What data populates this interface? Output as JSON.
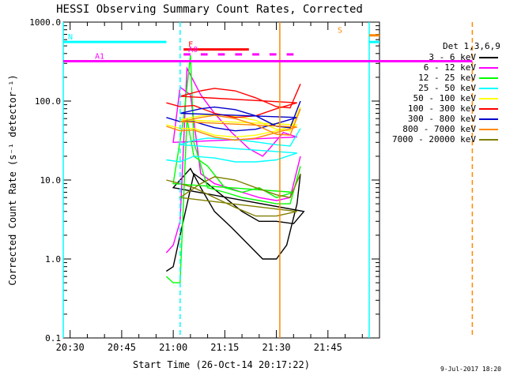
{
  "chart_data": {
    "type": "line",
    "title": "HESSI Observing Summary Count Rates, Corrected",
    "xlabel": "Start Time (26-Oct-14 20:17:22)",
    "ylabel": "Corrected Count Rate (s⁻¹ detector⁻¹)",
    "y_scale": "log",
    "ylim": [
      0.1,
      1000
    ],
    "y_ticks": [
      "0.1",
      "1.0",
      "10.0",
      "100.0",
      "1000.0"
    ],
    "x_range_minutes": [
      20.28,
      22.0
    ],
    "x_ticks": [
      "20:30",
      "20:45",
      "21:00",
      "21:15",
      "21:30",
      "21:45"
    ],
    "legend_title": "Det 1,3,6,9",
    "series": [
      {
        "name": "3 - 6 keV",
        "color": "#000000",
        "points": [
          [
            20.58,
            0.7
          ],
          [
            20.6,
            0.8
          ],
          [
            20.62,
            2.0
          ],
          [
            20.66,
            12.0
          ],
          [
            20.7,
            9.0
          ],
          [
            20.75,
            6.0
          ],
          [
            20.8,
            4.0
          ],
          [
            20.85,
            3.0
          ],
          [
            20.9,
            3.0
          ],
          [
            20.95,
            2.8
          ],
          [
            20.98,
            4.0
          ],
          [
            21.0,
            8.0
          ],
          [
            21.05,
            14.0
          ],
          [
            21.08,
            8.0
          ],
          [
            21.12,
            4.0
          ],
          [
            21.17,
            2.5
          ],
          [
            21.22,
            1.5
          ],
          [
            21.26,
            1.0
          ],
          [
            21.3,
            1.0
          ],
          [
            21.33,
            1.5
          ],
          [
            21.36,
            5.0
          ],
          [
            21.37,
            12.0
          ]
        ]
      },
      {
        "name": "6 - 12 keV",
        "color": "#ff00ff",
        "points": [
          [
            20.58,
            1.2
          ],
          [
            20.6,
            1.5
          ],
          [
            20.62,
            3.0
          ],
          [
            20.64,
            260.0
          ],
          [
            20.68,
            120.0
          ],
          [
            20.72,
            70.0
          ],
          [
            20.77,
            40.0
          ],
          [
            20.82,
            25.0
          ],
          [
            20.86,
            20.0
          ],
          [
            20.88,
            25.0
          ],
          [
            20.92,
            40.0
          ],
          [
            20.96,
            35.0
          ],
          [
            21.0,
            30.0
          ],
          [
            21.02,
            150.0
          ],
          [
            21.05,
            120.0
          ],
          [
            21.08,
            12.0
          ],
          [
            21.12,
            9.0
          ],
          [
            21.16,
            8.0
          ],
          [
            21.2,
            7.0
          ],
          [
            21.25,
            6.0
          ],
          [
            21.3,
            5.5
          ],
          [
            21.34,
            6.0
          ],
          [
            21.37,
            20.0
          ]
        ]
      },
      {
        "name": "12 - 25 keV",
        "color": "#00ff00",
        "points": [
          [
            20.58,
            0.6
          ],
          [
            20.6,
            0.5
          ],
          [
            20.62,
            0.5
          ],
          [
            20.64,
            60.0
          ],
          [
            20.66,
            20.0
          ],
          [
            20.7,
            15.0
          ],
          [
            20.75,
            8.0
          ],
          [
            20.8,
            7.0
          ],
          [
            20.85,
            8.0
          ],
          [
            20.9,
            6.0
          ],
          [
            20.95,
            7.0
          ],
          [
            21.0,
            9.0
          ],
          [
            21.03,
            60.0
          ],
          [
            21.05,
            380.0
          ],
          [
            21.06,
            30.0
          ],
          [
            21.1,
            8.0
          ],
          [
            21.15,
            7.0
          ],
          [
            21.2,
            6.0
          ],
          [
            21.25,
            5.5
          ],
          [
            21.3,
            5.0
          ],
          [
            21.34,
            5.0
          ],
          [
            21.37,
            15.0
          ]
        ]
      },
      {
        "name": "25 - 50 keV",
        "color": "#00ffff",
        "points": [
          [
            20.58,
            18.0
          ],
          [
            20.62,
            17.0
          ],
          [
            20.66,
            20.0
          ],
          [
            20.72,
            19.0
          ],
          [
            20.78,
            17.0
          ],
          [
            20.84,
            17.0
          ],
          [
            20.9,
            18.0
          ],
          [
            20.96,
            22.0
          ],
          [
            21.02,
            28.0
          ],
          [
            21.06,
            32.0
          ],
          [
            21.1,
            34.0
          ],
          [
            21.15,
            33.0
          ],
          [
            21.2,
            32.0
          ],
          [
            21.25,
            30.0
          ],
          [
            21.3,
            28.0
          ],
          [
            21.34,
            27.0
          ],
          [
            21.37,
            45.0
          ]
        ]
      },
      {
        "name": "50 - 100 keV",
        "color": "#ffff00",
        "points": [
          [
            20.58,
            50.0
          ],
          [
            20.62,
            45.0
          ],
          [
            20.66,
            45.0
          ],
          [
            20.72,
            37.0
          ],
          [
            20.78,
            35.0
          ],
          [
            20.84,
            37.0
          ],
          [
            20.9,
            42.0
          ],
          [
            20.96,
            50.0
          ],
          [
            21.02,
            58.0
          ],
          [
            21.08,
            65.0
          ],
          [
            21.12,
            68.0
          ],
          [
            21.18,
            64.0
          ],
          [
            21.24,
            57.0
          ],
          [
            21.3,
            44.0
          ],
          [
            21.34,
            42.0
          ],
          [
            21.37,
            85.0
          ]
        ]
      },
      {
        "name": "100 - 300 keV",
        "color": "#ff0000",
        "points": [
          [
            20.58,
            95.0
          ],
          [
            20.62,
            85.0
          ],
          [
            20.66,
            88.0
          ],
          [
            20.72,
            70.0
          ],
          [
            20.78,
            62.0
          ],
          [
            20.84,
            65.0
          ],
          [
            20.9,
            80.0
          ],
          [
            20.96,
            95.0
          ],
          [
            21.02,
            115.0
          ],
          [
            21.08,
            135.0
          ],
          [
            21.12,
            145.0
          ],
          [
            21.18,
            135.0
          ],
          [
            21.24,
            110.0
          ],
          [
            21.3,
            85.0
          ],
          [
            21.34,
            82.0
          ],
          [
            21.37,
            165.0
          ]
        ]
      },
      {
        "name": "300 - 800 keV",
        "color": "#0000cc",
        "points": [
          [
            20.58,
            62.0
          ],
          [
            20.62,
            55.0
          ],
          [
            20.66,
            55.0
          ],
          [
            20.72,
            46.0
          ],
          [
            20.78,
            42.0
          ],
          [
            20.84,
            44.0
          ],
          [
            20.9,
            52.0
          ],
          [
            20.96,
            62.0
          ],
          [
            21.02,
            70.0
          ],
          [
            21.08,
            80.0
          ],
          [
            21.12,
            84.0
          ],
          [
            21.18,
            78.0
          ],
          [
            21.24,
            65.0
          ],
          [
            21.3,
            48.0
          ],
          [
            21.34,
            46.0
          ],
          [
            21.37,
            100.0
          ]
        ]
      },
      {
        "name": "800 - 7000 keV",
        "color": "#ff8800",
        "points": [
          [
            20.58,
            48.0
          ],
          [
            20.62,
            42.0
          ],
          [
            20.66,
            43.0
          ],
          [
            20.72,
            35.0
          ],
          [
            20.78,
            32.0
          ],
          [
            20.84,
            34.0
          ],
          [
            20.9,
            40.0
          ],
          [
            20.96,
            47.0
          ],
          [
            21.02,
            55.0
          ],
          [
            21.08,
            62.0
          ],
          [
            21.12,
            66.0
          ],
          [
            21.18,
            60.0
          ],
          [
            21.24,
            50.0
          ],
          [
            21.3,
            38.0
          ],
          [
            21.34,
            37.0
          ],
          [
            21.37,
            80.0
          ]
        ]
      },
      {
        "name": "7000 - 20000 keV",
        "color": "#7f7f00",
        "points": [
          [
            20.58,
            10.0
          ],
          [
            20.62,
            9.0
          ],
          [
            20.66,
            8.0
          ],
          [
            20.72,
            6.0
          ],
          [
            20.78,
            4.5
          ],
          [
            20.84,
            3.5
          ],
          [
            20.9,
            3.5
          ],
          [
            20.96,
            4.0
          ],
          [
            21.02,
            6.0
          ],
          [
            21.08,
            9.0
          ],
          [
            21.12,
            11.0
          ],
          [
            21.18,
            10.0
          ],
          [
            21.24,
            8.0
          ],
          [
            21.3,
            6.5
          ],
          [
            21.34,
            6.0
          ],
          [
            21.37,
            12.0
          ]
        ]
      }
    ],
    "flags": [
      {
        "label": "N",
        "color": "#00ffff",
        "y_value": 560,
        "segments": [
          [
            20.28,
            20.58
          ],
          [
            21.57,
            22.0
          ]
        ]
      },
      {
        "label": "S",
        "color": "#ff8800",
        "y_value": 680,
        "segments": [
          [
            21.57,
            22.0
          ]
        ]
      },
      {
        "label": "F",
        "color": "#ff0000",
        "y_value": 450,
        "segments": [
          [
            20.63,
            21.22
          ]
        ]
      },
      {
        "label": "A0",
        "color": "#ff00ff",
        "y_value": 390,
        "segments": [
          [
            20.63,
            20.65
          ],
          [
            20.68,
            20.7
          ],
          [
            20.73,
            20.75
          ],
          [
            20.78,
            20.8
          ],
          [
            20.83,
            20.85
          ],
          [
            20.88,
            20.9
          ],
          [
            20.93,
            20.95
          ]
        ]
      },
      {
        "label": "A1",
        "color": "#ff00ff",
        "y_value": 320,
        "segments": [
          [
            20.28,
            21.87
          ]
        ]
      }
    ],
    "vertical_lines": [
      {
        "x": 20.28,
        "color": "#00ffff",
        "style": "solid"
      },
      {
        "x": 20.62,
        "color": "#00ffff",
        "style": "dashed"
      },
      {
        "x": 21.31,
        "color": "#ff8800",
        "style": "solid"
      },
      {
        "x": 21.57,
        "color": "#00ffff",
        "style": "solid"
      },
      {
        "x": 21.87,
        "color": "#ff8800",
        "style": "dashed"
      }
    ],
    "grid": false,
    "legend_placement": "right"
  },
  "footer": {
    "date": "9-Jul-2017 18:20"
  }
}
